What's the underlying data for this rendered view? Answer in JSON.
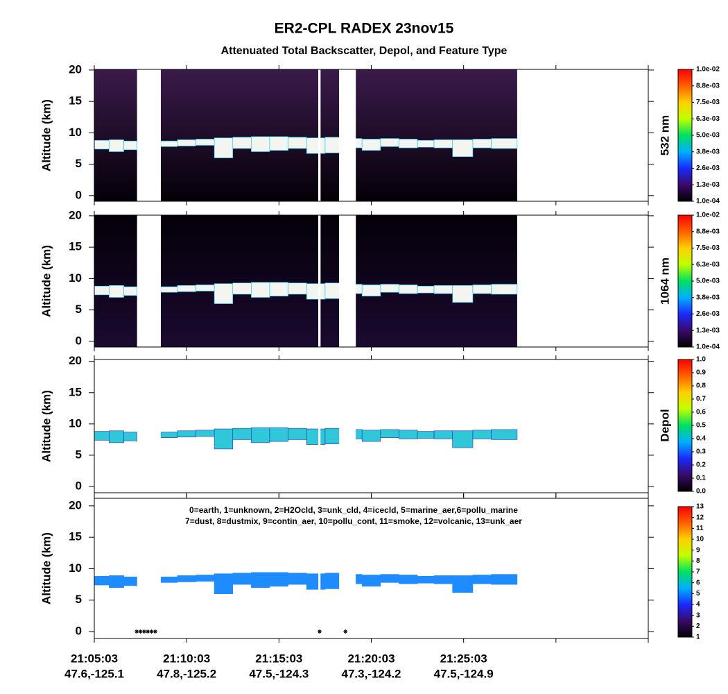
{
  "title": "ER2-CPL  RADEX  23nov15",
  "subtitle": "Attenuated Total Backscatter, Depol, and Feature Type",
  "x_axis": {
    "xlim": [
      0,
      30
    ],
    "xticks": [
      {
        "value": 0,
        "label": "21:05:03"
      },
      {
        "value": 5,
        "label": "21:10:03"
      },
      {
        "value": 10,
        "label": "21:15:03"
      },
      {
        "value": 15,
        "label": "21:20:03"
      },
      {
        "value": 20,
        "label": "21:25:03"
      },
      {
        "value": 25,
        "label": ""
      },
      {
        "value": 30,
        "label": ""
      }
    ],
    "xtick_locations": [
      "47.6,-125.1",
      "47.8,-125.2",
      "47.5,-124.3",
      "47.3,-124.2",
      "47.5,-124.9"
    ]
  },
  "data_spans": [
    [
      0,
      2.32
    ],
    [
      3.6,
      12.13
    ],
    [
      12.25,
      13.26
    ],
    [
      14.16,
      22.9
    ]
  ],
  "layer": {
    "x": [
      0,
      0.8,
      1.6,
      2.3,
      2.9,
      3.6,
      4.5,
      5.5,
      6.5,
      7.5,
      8.5,
      9.5,
      10.5,
      11.5,
      12.5,
      13.5,
      14.5,
      15.5,
      16.5,
      17.5,
      18.4,
      19.4,
      20.5,
      21.5,
      22.9
    ],
    "top": [
      8.8,
      8.9,
      8.7,
      8.6,
      null,
      8.7,
      8.9,
      9.0,
      9.2,
      9.3,
      9.4,
      9.4,
      9.3,
      9.2,
      9.3,
      9.1,
      9.0,
      9.1,
      9.0,
      8.8,
      8.9,
      8.9,
      9.0,
      9.1,
      9.0
    ],
    "base": [
      7.4,
      7.0,
      7.3,
      7.2,
      null,
      7.8,
      7.9,
      8.0,
      6.0,
      7.5,
      7.0,
      7.2,
      7.5,
      6.7,
      6.8,
      7.6,
      7.2,
      7.8,
      7.6,
      7.7,
      7.6,
      6.2,
      7.6,
      7.5,
      8.0
    ]
  },
  "chart_data": [
    {
      "type": "curtain",
      "y_label": "Altitude (km)",
      "ylim": [
        -0.9,
        20.1
      ],
      "yticks": [
        0,
        5,
        10,
        15,
        20
      ],
      "background": [
        "#3a1a4a",
        "#050008"
      ],
      "layer_color": "#f4f4f0",
      "layer_edge": "#00c8ff",
      "colorbar": {
        "label": "532 nm",
        "lim": [
          0.0001,
          0.01
        ],
        "colors": [
          "#000000",
          "#3a0a6a",
          "#1a2aff",
          "#00b0ff",
          "#00e060",
          "#c0ff00",
          "#ffd000",
          "#ff6000",
          "#ff0000"
        ],
        "ticks": [
          {
            "value": 0.0001,
            "label": "1.0e-04"
          },
          {
            "value": 0.00134,
            "label": "1.3e-03"
          },
          {
            "value": 0.00258,
            "label": "2.6e-03"
          },
          {
            "value": 0.00381,
            "label": "3.8e-03"
          },
          {
            "value": 0.00505,
            "label": "5.0e-03"
          },
          {
            "value": 0.00629,
            "label": "6.3e-03"
          },
          {
            "value": 0.00753,
            "label": "7.5e-03"
          },
          {
            "value": 0.00876,
            "label": "8.8e-03"
          },
          {
            "value": 0.01,
            "label": "1.0e-02"
          }
        ]
      }
    },
    {
      "type": "curtain",
      "y_label": "Altitude (km)",
      "ylim": [
        -0.9,
        20.1
      ],
      "yticks": [
        0,
        5,
        10,
        15,
        20
      ],
      "background": [
        "#050008",
        "#1a0a30"
      ],
      "layer_color": "#f4f4f0",
      "layer_edge": "#00c8ff",
      "colorbar": {
        "label": "1064 nm",
        "lim": [
          0.0001,
          0.01
        ],
        "colors": [
          "#000000",
          "#3a0a6a",
          "#1a2aff",
          "#00b0ff",
          "#00e060",
          "#c0ff00",
          "#ffd000",
          "#ff6000",
          "#ff0000"
        ],
        "ticks": [
          {
            "value": 0.0001,
            "label": "1.0e-04"
          },
          {
            "value": 0.00134,
            "label": "1.3e-03"
          },
          {
            "value": 0.00258,
            "label": "2.6e-03"
          },
          {
            "value": 0.00381,
            "label": "3.8e-03"
          },
          {
            "value": 0.00505,
            "label": "5.0e-03"
          },
          {
            "value": 0.00629,
            "label": "6.3e-03"
          },
          {
            "value": 0.00753,
            "label": "7.5e-03"
          },
          {
            "value": 0.00876,
            "label": "8.8e-03"
          },
          {
            "value": 0.01,
            "label": "1.0e-02"
          }
        ]
      }
    },
    {
      "type": "curtain",
      "y_label": "Altitude (km)",
      "ylim": [
        -1.0,
        20.3
      ],
      "yticks": [
        0,
        5,
        10,
        15,
        20
      ],
      "background": [
        "#ffffff",
        "#ffffff"
      ],
      "layer_color": "#30c8d8",
      "layer_edge": "#2030c0",
      "colorbar": {
        "label": "Depol",
        "lim": [
          0,
          1
        ],
        "colors": [
          "#000000",
          "#3a0a6a",
          "#1a2aff",
          "#00b0ff",
          "#00e060",
          "#c0ff00",
          "#ffd000",
          "#ff6000",
          "#ff0000"
        ],
        "ticks": [
          {
            "value": 0,
            "label": "0.0"
          },
          {
            "value": 0.1,
            "label": "0.1"
          },
          {
            "value": 0.2,
            "label": "0.2"
          },
          {
            "value": 0.3,
            "label": "0.3"
          },
          {
            "value": 0.4,
            "label": "0.4"
          },
          {
            "value": 0.5,
            "label": "0.5"
          },
          {
            "value": 0.6,
            "label": "0.6"
          },
          {
            "value": 0.7,
            "label": "0.7"
          },
          {
            "value": 0.8,
            "label": "0.8"
          },
          {
            "value": 0.9,
            "label": "0.9"
          },
          {
            "value": 1,
            "label": "1.0"
          }
        ]
      }
    },
    {
      "type": "curtain",
      "y_label": "Altitude (km)",
      "ylim": [
        -1.1,
        21.2
      ],
      "yticks": [
        0,
        5,
        10,
        15,
        20
      ],
      "background": [
        "#ffffff",
        "#ffffff"
      ],
      "layer_color": "#1e8cff",
      "layer_edge": "#1e8cff",
      "legend_lines": [
        "0=earth, 1=unknown, 2=H2Ocld, 3=unk_cld, 4=icecld, 5=marine_aer,6=pollu_marine",
        "7=dust, 8=dustmix, 9=contin_aer, 10=pollu_cont, 11=smoke, 12=volcanic, 13=unk_aer"
      ],
      "surface_x": [
        2.3,
        2.5,
        2.7,
        2.9,
        3.1,
        3.3,
        12.2,
        13.6
      ],
      "colorbar": {
        "label": "",
        "lim": [
          1,
          13
        ],
        "colors": [
          "#000000",
          "#3a0a6a",
          "#1a2aff",
          "#00b0ff",
          "#00e060",
          "#c0ff00",
          "#ffd000",
          "#ff6000",
          "#ff0000"
        ],
        "ticks": [
          1,
          2,
          3,
          4,
          5,
          6,
          7,
          8,
          9,
          10,
          11,
          12,
          13
        ]
      }
    }
  ]
}
